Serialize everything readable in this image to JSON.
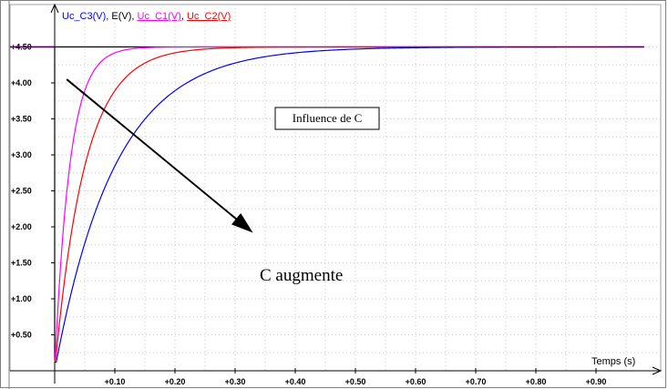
{
  "chart_data": {
    "type": "line",
    "legend_entries": [
      {
        "name": "Uc_C3(V)",
        "color": "#0000ff",
        "underline": false
      },
      {
        "name": "E(V)",
        "color": "#000000",
        "underline": false
      },
      {
        "name": "Uc_C1(V)",
        "color": "#ff00ff",
        "underline": true
      },
      {
        "name": "Uc_C2(V)",
        "color": "#ff0000",
        "underline": true
      }
    ],
    "legend_separator": ", ",
    "xlabel": "Temps (s)",
    "ylabel": "",
    "xlim": [
      0,
      0.98
    ],
    "ylim": [
      0,
      4.6
    ],
    "x_ticks": [
      {
        "value": 0.1,
        "label": "+0.10"
      },
      {
        "value": 0.2,
        "label": "+0.20"
      },
      {
        "value": 0.3,
        "label": "+0.30"
      },
      {
        "value": 0.4,
        "label": "+0.40"
      },
      {
        "value": 0.5,
        "label": "+0.50"
      },
      {
        "value": 0.6,
        "label": "+0.60"
      },
      {
        "value": 0.7,
        "label": "+0.70"
      },
      {
        "value": 0.8,
        "label": "+0.80"
      },
      {
        "value": 0.9,
        "label": "+0.90"
      }
    ],
    "y_ticks": [
      {
        "value": 0.5,
        "label": "+0.50"
      },
      {
        "value": 1.0,
        "label": "+1.00"
      },
      {
        "value": 1.5,
        "label": "+1.50"
      },
      {
        "value": 2.0,
        "label": "+2.00"
      },
      {
        "value": 2.5,
        "label": "+2.50"
      },
      {
        "value": 3.0,
        "label": "+3.00"
      },
      {
        "value": 3.5,
        "label": "+3.50"
      },
      {
        "value": 4.0,
        "label": "+4.00"
      },
      {
        "value": 4.5,
        "label": "+4.50"
      }
    ],
    "grid": true,
    "series": [
      {
        "name": "E(V)",
        "color": "#000000",
        "kind": "step",
        "E": 4.5,
        "x_start": 0.0,
        "y_start": 0.15
      },
      {
        "name": "Uc_C1(V)",
        "color": "#ff00ff",
        "kind": "rc_charge",
        "E": 4.5,
        "tau": 0.025
      },
      {
        "name": "Uc_C2(V)",
        "color": "#ff0000",
        "kind": "rc_charge",
        "E": 4.5,
        "tau": 0.05
      },
      {
        "name": "Uc_C3(V)",
        "color": "#0000ff",
        "kind": "rc_charge",
        "E": 4.5,
        "tau": 0.1
      }
    ],
    "annotations": {
      "box_text": "Influence de C",
      "arrow_text": "C  augmente",
      "arrow_from": [
        0.02,
        4.05
      ],
      "arrow_to": [
        0.325,
        1.95
      ]
    }
  }
}
